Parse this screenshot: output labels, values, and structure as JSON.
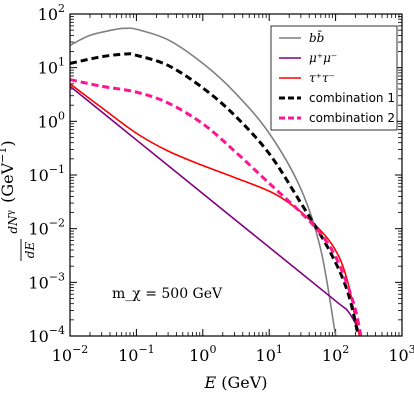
{
  "chart_data": {
    "type": "line",
    "xlabel": "E (GeV)",
    "ylabel": "dN^γ/dE (GeV^-1)",
    "xscale": "log",
    "yscale": "log",
    "xlim": [
      0.01,
      1000
    ],
    "ylim": [
      0.0001,
      100
    ],
    "legend_position": "top-right",
    "annotation": "m_χ = 500 GeV",
    "x_tick_labels": [
      {
        "base": "10",
        "exp": "-2"
      },
      {
        "base": "10",
        "exp": "-1"
      },
      {
        "base": "10",
        "exp": "0"
      },
      {
        "base": "10",
        "exp": "1"
      },
      {
        "base": "10",
        "exp": "2"
      },
      {
        "base": "10",
        "exp": "3"
      }
    ],
    "y_tick_labels": [
      {
        "base": "10",
        "exp": "-4"
      },
      {
        "base": "10",
        "exp": "-3"
      },
      {
        "base": "10",
        "exp": "-2"
      },
      {
        "base": "10",
        "exp": "-1"
      },
      {
        "base": "10",
        "exp": "0"
      },
      {
        "base": "10",
        "exp": "1"
      },
      {
        "base": "10",
        "exp": "2"
      }
    ],
    "series": [
      {
        "name": "bb̄",
        "color": "#808080",
        "dash": "solid",
        "x": [
          0.01,
          0.02,
          0.05,
          0.07,
          0.1,
          0.3,
          1,
          3,
          10,
          30,
          60,
          100
        ],
        "y": [
          26,
          40,
          52,
          54,
          52,
          33,
          12,
          3.5,
          0.6,
          0.055,
          0.004,
          0.0001
        ]
      },
      {
        "name": "μ⁺μ⁻",
        "color": "#800080",
        "dash": "solid",
        "x": [
          0.01,
          0.1,
          1,
          10,
          100,
          150,
          200,
          240
        ],
        "y": [
          4.5,
          0.45,
          0.045,
          0.0045,
          0.00045,
          0.0003,
          0.00017,
          0.0001
        ]
      },
      {
        "name": "τ⁺τ⁻",
        "color": "#ff0000",
        "dash": "solid",
        "x": [
          0.01,
          0.03,
          0.1,
          0.3,
          1,
          3,
          10,
          20,
          40,
          80,
          120,
          160,
          200,
          230
        ],
        "y": [
          5,
          1.8,
          0.6,
          0.28,
          0.15,
          0.09,
          0.05,
          0.03,
          0.015,
          0.006,
          0.0025,
          0.0008,
          0.0002,
          0.0001
        ]
      },
      {
        "name": "combination 1",
        "color": "#000000",
        "dash": "dashed",
        "x": [
          0.01,
          0.03,
          0.07,
          0.1,
          0.3,
          1,
          3,
          10,
          30,
          80,
          150,
          220
        ],
        "y": [
          12,
          16,
          18,
          17,
          11,
          4.2,
          1.3,
          0.25,
          0.03,
          0.004,
          0.0007,
          0.0001
        ]
      },
      {
        "name": "combination 2",
        "color": "#ff1493",
        "dash": "dashed",
        "x": [
          0.01,
          0.03,
          0.1,
          0.3,
          1,
          3,
          10,
          30,
          60,
          100,
          150,
          200,
          240
        ],
        "y": [
          6,
          4.5,
          3.5,
          2.2,
          0.9,
          0.28,
          0.07,
          0.02,
          0.008,
          0.003,
          0.0009,
          0.0003,
          0.0001
        ]
      }
    ]
  }
}
